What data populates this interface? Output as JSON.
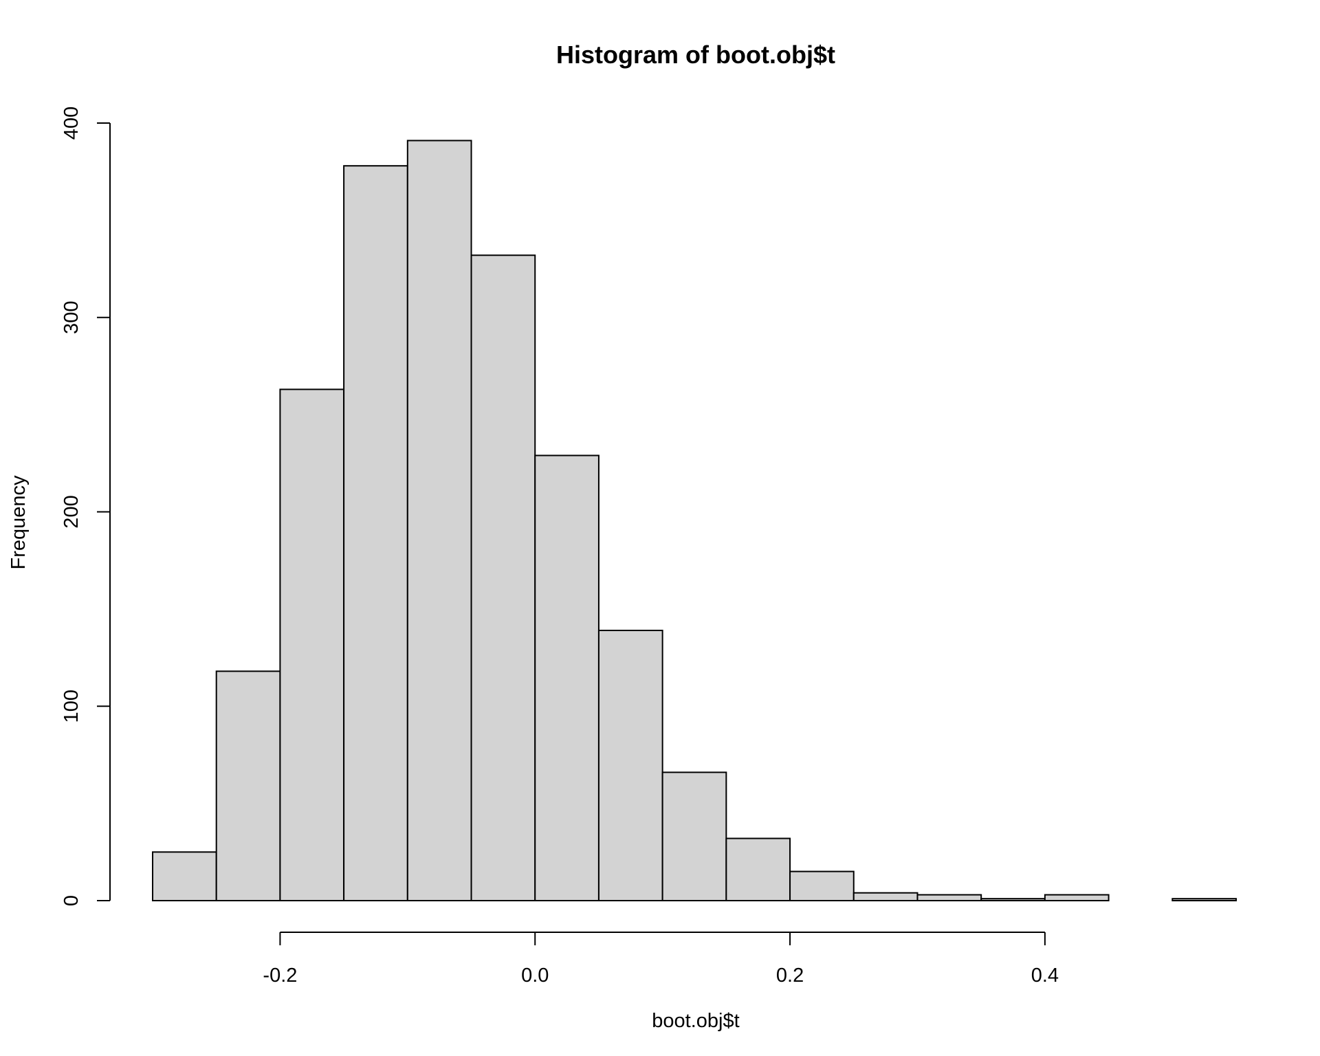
{
  "chart_data": {
    "type": "bar",
    "title": "Histogram of boot.obj$t",
    "xlabel": "boot.obj$t",
    "ylabel": "Frequency",
    "bins": [
      {
        "start": -0.3,
        "end": -0.25,
        "count": 25
      },
      {
        "start": -0.25,
        "end": -0.2,
        "count": 118
      },
      {
        "start": -0.2,
        "end": -0.15,
        "count": 263
      },
      {
        "start": -0.15,
        "end": -0.1,
        "count": 378
      },
      {
        "start": -0.1,
        "end": -0.05,
        "count": 391
      },
      {
        "start": -0.05,
        "end": 0.0,
        "count": 332
      },
      {
        "start": 0.0,
        "end": 0.05,
        "count": 229
      },
      {
        "start": 0.05,
        "end": 0.1,
        "count": 139
      },
      {
        "start": 0.1,
        "end": 0.15,
        "count": 66
      },
      {
        "start": 0.15,
        "end": 0.2,
        "count": 32
      },
      {
        "start": 0.2,
        "end": 0.25,
        "count": 15
      },
      {
        "start": 0.25,
        "end": 0.3,
        "count": 4
      },
      {
        "start": 0.3,
        "end": 0.35,
        "count": 3
      },
      {
        "start": 0.35,
        "end": 0.4,
        "count": 1
      },
      {
        "start": 0.4,
        "end": 0.45,
        "count": 3
      },
      {
        "start": 0.45,
        "end": 0.5,
        "count": 0
      },
      {
        "start": 0.5,
        "end": 0.55,
        "count": 1
      }
    ],
    "xlim": [
      -0.3,
      0.55
    ],
    "ylim": [
      0,
      400
    ],
    "x_ticks": [
      {
        "value": -0.2,
        "label": "-0.2"
      },
      {
        "value": 0.0,
        "label": "0.0"
      },
      {
        "value": 0.2,
        "label": "0.2"
      },
      {
        "value": 0.4,
        "label": "0.4"
      }
    ],
    "y_ticks": [
      {
        "value": 0,
        "label": "0"
      },
      {
        "value": 100,
        "label": "100"
      },
      {
        "value": 200,
        "label": "200"
      },
      {
        "value": 300,
        "label": "300"
      },
      {
        "value": 400,
        "label": "400"
      }
    ],
    "grid": false,
    "legend": "none",
    "colors": {
      "bar_fill": "#d3d3d3",
      "bar_stroke": "#000000",
      "axis": "#000000",
      "background": "#ffffff"
    }
  }
}
